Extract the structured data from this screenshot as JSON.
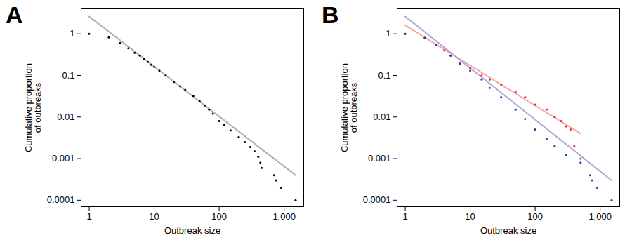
{
  "chart_data": [
    {
      "type": "scatter",
      "title": "A",
      "log": true,
      "x_label": "Outbreak size",
      "y_label": "Cumulative proportion\nof outbreaks",
      "xlim": [
        0.75,
        2000
      ],
      "ylim": [
        7e-05,
        4
      ],
      "xticks": [
        1,
        10,
        100,
        {
          "value": 1000,
          "label": "1,000"
        }
      ],
      "yticks": [
        0.0001,
        0.001,
        0.01,
        0.1,
        1
      ],
      "series": [
        {
          "type": "scatter",
          "color": "#000000",
          "x": [
            1,
            2,
            3,
            4,
            5,
            6,
            7,
            8,
            9,
            10,
            12,
            15,
            20,
            25,
            30,
            40,
            50,
            60,
            70,
            80,
            100,
            120,
            150,
            200,
            250,
            300,
            350,
            400,
            430,
            450,
            700,
            750,
            900,
            1500
          ],
          "values": [
            1,
            0.82,
            0.6,
            0.45,
            0.35,
            0.3,
            0.25,
            0.21,
            0.18,
            0.16,
            0.13,
            0.1,
            0.07,
            0.055,
            0.045,
            0.032,
            0.024,
            0.019,
            0.015,
            0.012,
            0.008,
            0.0065,
            0.0048,
            0.0033,
            0.0025,
            0.0019,
            0.0015,
            0.0011,
            0.0008,
            0.0006,
            0.0004,
            0.0003,
            0.0002,
            0.0001
          ]
        },
        {
          "type": "line",
          "color": "#b0b0b0",
          "x": [
            1,
            1500
          ],
          "values": [
            2.6,
            0.0004
          ]
        }
      ]
    },
    {
      "type": "scatter",
      "title": "B",
      "log": true,
      "x_label": "Outbreak size",
      "y_label": "Cumulative proportion\nof outbreaks",
      "xlim": [
        0.75,
        2000
      ],
      "ylim": [
        7e-05,
        4
      ],
      "xticks": [
        1,
        10,
        100,
        {
          "value": 1000,
          "label": "1,000"
        }
      ],
      "yticks": [
        0.0001,
        0.001,
        0.01,
        0.1,
        1
      ],
      "series": [
        {
          "type": "scatter",
          "color": "#e8241f",
          "x": [
            1,
            2,
            3,
            4,
            5,
            7,
            10,
            15,
            20,
            30,
            50,
            70,
            100,
            150,
            200,
            250,
            300,
            350,
            400,
            500
          ],
          "values": [
            1,
            0.8,
            0.55,
            0.4,
            0.3,
            0.2,
            0.15,
            0.1,
            0.08,
            0.06,
            0.04,
            0.03,
            0.02,
            0.015,
            0.01,
            0.008,
            0.006,
            0.005,
            0.002,
            0.001
          ]
        },
        {
          "type": "scatter",
          "color": "#2a3a9a",
          "x": [
            1,
            2,
            3,
            5,
            7,
            10,
            15,
            20,
            30,
            50,
            70,
            100,
            150,
            200,
            300,
            500,
            700,
            750,
            900,
            1500
          ],
          "values": [
            1,
            0.8,
            0.55,
            0.3,
            0.19,
            0.13,
            0.08,
            0.05,
            0.03,
            0.015,
            0.009,
            0.005,
            0.003,
            0.002,
            0.0012,
            0.0008,
            0.0004,
            0.0003,
            0.0002,
            0.0001
          ]
        },
        {
          "type": "line",
          "color": "#f4a6a6",
          "x": [
            1,
            500
          ],
          "values": [
            1.6,
            0.004
          ]
        },
        {
          "type": "line",
          "color": "#a9a9d9",
          "x": [
            1,
            1500
          ],
          "values": [
            2.6,
            0.0003
          ]
        }
      ]
    }
  ]
}
